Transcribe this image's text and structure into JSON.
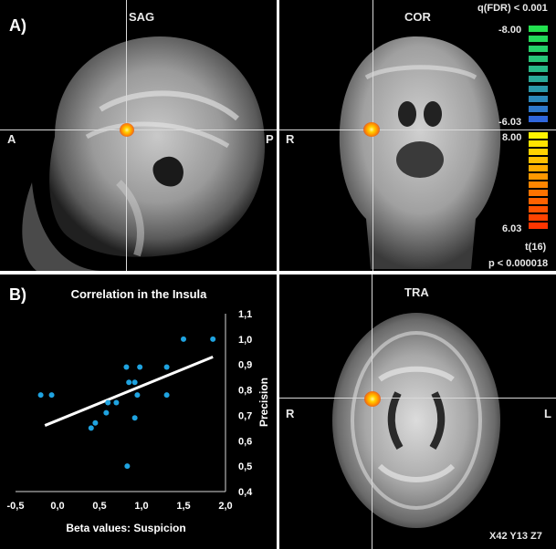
{
  "panels": {
    "a_label": "A)",
    "b_label": "B)",
    "sag": {
      "title": "SAG",
      "left": "A",
      "right": "P"
    },
    "cor": {
      "title": "COR",
      "left": "R"
    },
    "tra": {
      "title": "TRA",
      "left": "R",
      "right": "L",
      "coords": "X42 Y13 Z7"
    }
  },
  "colorbar": {
    "header": "q(FDR) < 0.001",
    "neg_max": "-8.00",
    "neg_min": "-6.03",
    "pos_max": "8.00",
    "pos_min": "6.03",
    "stat": "t(16)",
    "p_value": "p < 0.000018",
    "neg_colors": [
      "#23e04f",
      "#23d85a",
      "#25cf69",
      "#27c478",
      "#28b888",
      "#2aa899",
      "#2b98aa",
      "#2c88bb",
      "#2e78cc",
      "#2f66dc"
    ],
    "pos_colors": [
      "#fff200",
      "#ffe400",
      "#ffd200",
      "#ffbf00",
      "#ffab00",
      "#ff9800",
      "#ff8500",
      "#ff7200",
      "#ff6200",
      "#ff5200",
      "#ff4300",
      "#ff3500"
    ]
  },
  "chart_data": {
    "type": "scatter",
    "title": "Correlation in the Insula",
    "xlabel": "Beta values: Suspicion",
    "ylabel": "Precision",
    "xlim": [
      -0.5,
      2.0
    ],
    "ylim": [
      0.4,
      1.1
    ],
    "xticks": [
      "-0,5",
      "0,0",
      "0,5",
      "1,0",
      "1,5",
      "2,0"
    ],
    "yticks": [
      "0,4",
      "0,5",
      "0,6",
      "0,7",
      "0,8",
      "0,9",
      "1,0",
      "1,1"
    ],
    "points": [
      {
        "x": -0.2,
        "y": 0.78
      },
      {
        "x": -0.07,
        "y": 0.78
      },
      {
        "x": 0.4,
        "y": 0.65
      },
      {
        "x": 0.45,
        "y": 0.67
      },
      {
        "x": 0.58,
        "y": 0.71
      },
      {
        "x": 0.6,
        "y": 0.75
      },
      {
        "x": 0.7,
        "y": 0.75
      },
      {
        "x": 0.82,
        "y": 0.89
      },
      {
        "x": 0.85,
        "y": 0.83
      },
      {
        "x": 0.92,
        "y": 0.83
      },
      {
        "x": 0.92,
        "y": 0.69
      },
      {
        "x": 0.95,
        "y": 0.78
      },
      {
        "x": 0.98,
        "y": 0.89
      },
      {
        "x": 0.83,
        "y": 0.5
      },
      {
        "x": 1.3,
        "y": 0.89
      },
      {
        "x": 1.3,
        "y": 0.78
      },
      {
        "x": 1.5,
        "y": 1.0
      },
      {
        "x": 1.85,
        "y": 1.0
      }
    ],
    "trendline": {
      "x0": -0.15,
      "y0": 0.66,
      "x1": 1.85,
      "y1": 0.93
    },
    "point_color": "#1fa3e0",
    "line_color": "#ffffff"
  }
}
